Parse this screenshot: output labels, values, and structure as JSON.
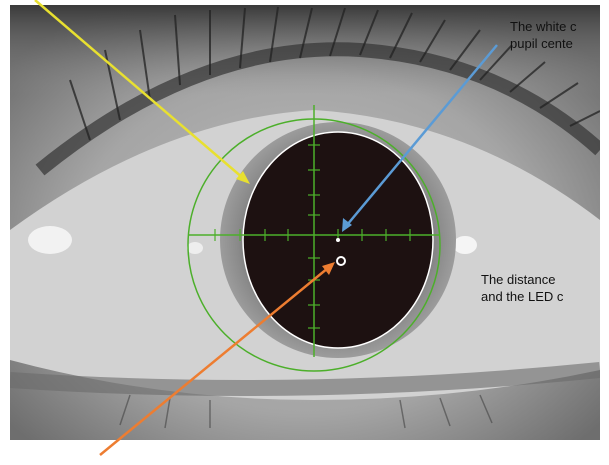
{
  "annotations": [
    {
      "lines": [
        "The white c",
        "pupil cente"
      ]
    },
    {
      "lines": [
        "The distance",
        "and the LED c"
      ]
    }
  ]
}
